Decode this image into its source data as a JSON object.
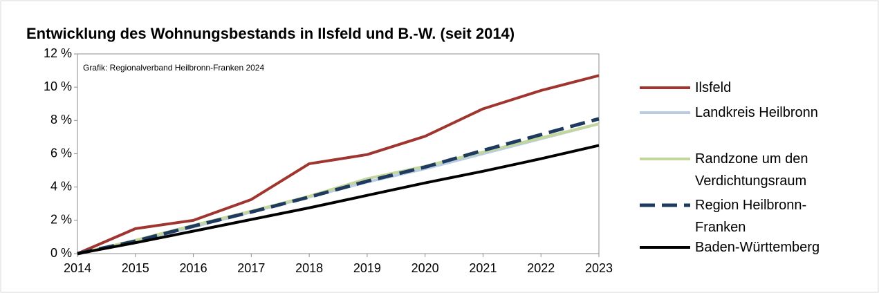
{
  "chart_data": {
    "type": "line",
    "title": "Entwicklung des Wohnungsbestands in Ilsfeld und B.-W. (seit 2014)",
    "annotation": "Grafik: Regionalverband Heilbronn-Franken 2024",
    "categories": [
      "2014",
      "2015",
      "2016",
      "2017",
      "2018",
      "2019",
      "2020",
      "2021",
      "2022",
      "2023"
    ],
    "series": [
      {
        "name": "Ilsfeld",
        "color": "#a0352f",
        "values": [
          0,
          1.5,
          2.0,
          3.25,
          5.4,
          5.95,
          7.05,
          8.7,
          9.8,
          10.7
        ]
      },
      {
        "name": "Landkreis Heilbronn",
        "color": "#b8cce4",
        "values": [
          0,
          0.75,
          1.6,
          2.5,
          3.4,
          4.3,
          5.1,
          6.0,
          6.9,
          7.8
        ]
      },
      {
        "name": "Randzone um den Verdichtungsraum",
        "color": "#c3d69b",
        "values": [
          0,
          0.8,
          1.7,
          2.55,
          3.45,
          4.5,
          5.25,
          6.1,
          6.95,
          7.8
        ]
      },
      {
        "name": "Region Heilbronn-Franken",
        "color": "#1f3a5f",
        "dashed": true,
        "values": [
          0,
          0.75,
          1.65,
          2.5,
          3.4,
          4.35,
          5.2,
          6.2,
          7.15,
          8.1
        ]
      },
      {
        "name": "Baden-Württemberg",
        "color": "#000000",
        "values": [
          0,
          0.65,
          1.35,
          2.05,
          2.75,
          3.5,
          4.25,
          4.95,
          5.7,
          6.5
        ]
      }
    ],
    "ylim": [
      0,
      12
    ],
    "yticks": [
      {
        "value": 0,
        "label": "0 %"
      },
      {
        "value": 2,
        "label": "2 %"
      },
      {
        "value": 4,
        "label": "4 %"
      },
      {
        "value": 6,
        "label": "6 %"
      },
      {
        "value": 8,
        "label": "8 %"
      },
      {
        "value": 10,
        "label": "10 %"
      },
      {
        "value": 12,
        "label": "12 %"
      }
    ],
    "grid": false,
    "legend": "right"
  }
}
